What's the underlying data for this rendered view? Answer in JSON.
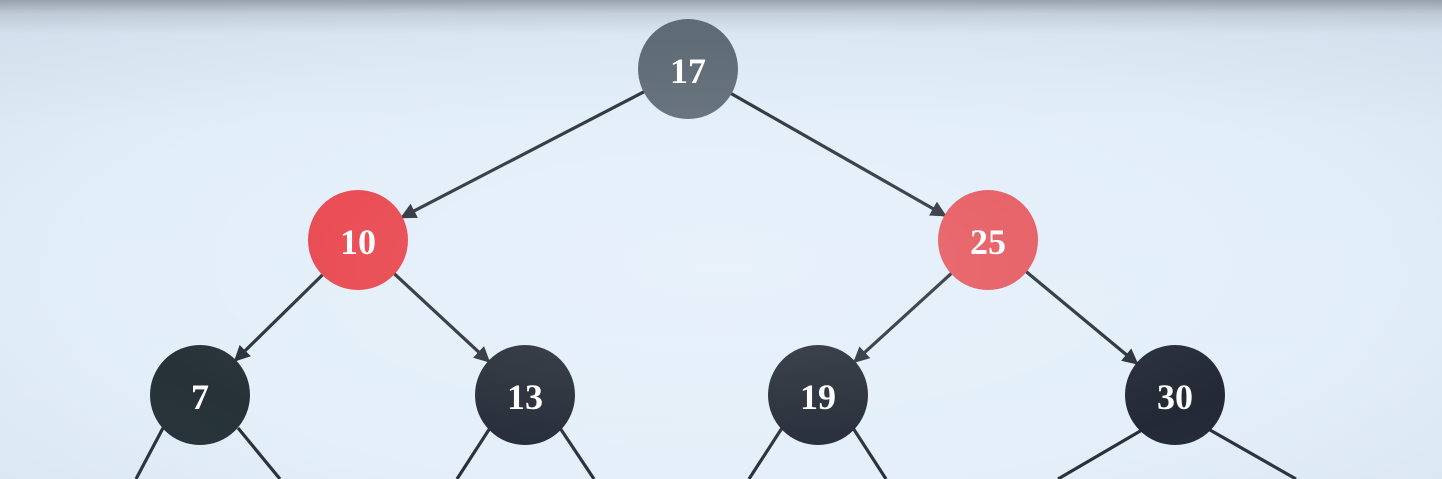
{
  "tree": {
    "nodes": [
      {
        "id": "n17",
        "label": "17",
        "color": "#5f6b75"
      },
      {
        "id": "n10",
        "label": "10",
        "color": "#e8434b"
      },
      {
        "id": "n25",
        "label": "25",
        "color": "#e5565d"
      },
      {
        "id": "n7",
        "label": "7",
        "color": "#263238"
      },
      {
        "id": "n13",
        "label": "13",
        "color": "#232a35"
      },
      {
        "id": "n19",
        "label": "19",
        "color": "#232a35"
      },
      {
        "id": "n30",
        "label": "30",
        "color": "#232a35"
      }
    ],
    "edges": [
      {
        "from": "n17",
        "to": "n10"
      },
      {
        "from": "n17",
        "to": "n25"
      },
      {
        "from": "n10",
        "to": "n7"
      },
      {
        "from": "n10",
        "to": "n13"
      },
      {
        "from": "n25",
        "to": "n19"
      },
      {
        "from": "n25",
        "to": "n30"
      }
    ]
  }
}
